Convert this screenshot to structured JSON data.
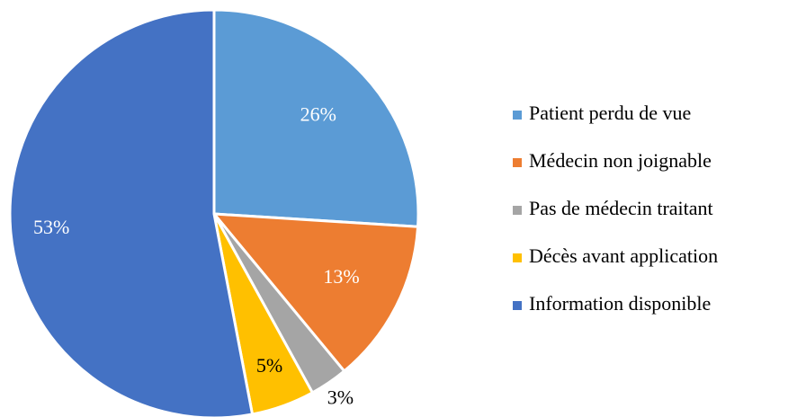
{
  "chart_data": {
    "type": "pie",
    "categories": [
      "Patient perdu de vue",
      "Médecin non joignable",
      "Pas de médecin traitant",
      "Décès avant application",
      "Information disponible"
    ],
    "values": [
      26,
      13,
      3,
      5,
      53
    ],
    "value_labels": [
      "26%",
      "13%",
      "3%",
      "5%",
      "53%"
    ],
    "colors": [
      "#5b9bd5",
      "#ed7d31",
      "#a5a5a5",
      "#ffc000",
      "#4472c4"
    ],
    "legend": "right"
  }
}
